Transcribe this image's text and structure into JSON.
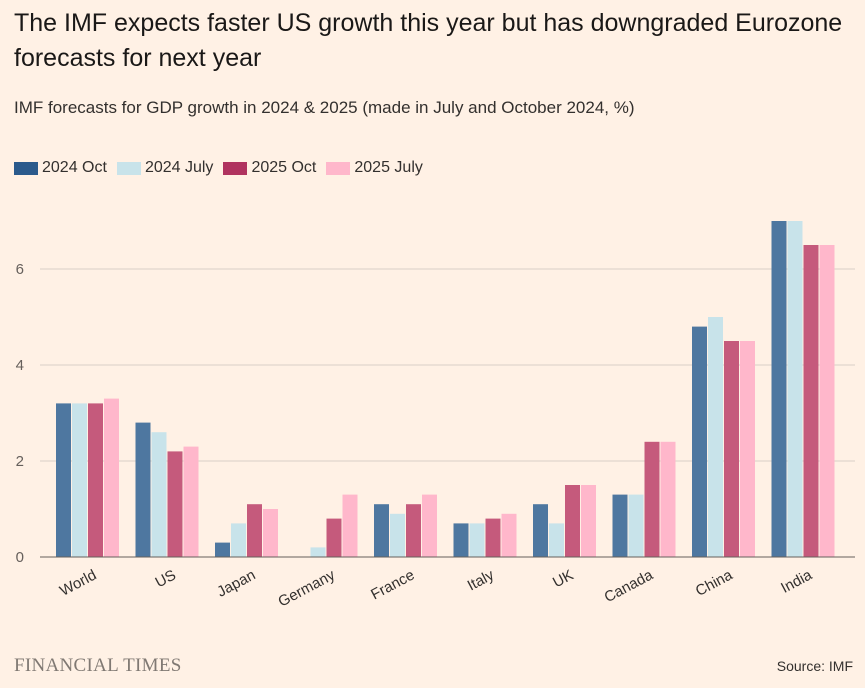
{
  "header": {
    "title": "The IMF expects faster US growth this year but has downgraded Eurozone forecasts for next year",
    "subtitle": "IMF forecasts for GDP growth in 2024 & 2025 (made in July and October 2024, %)"
  },
  "footer": {
    "brand": "FINANCIAL TIMES",
    "source": "Source: IMF"
  },
  "chart_data": {
    "type": "bar",
    "title": "The IMF expects faster US growth this year but has downgraded Eurozone forecasts for next year",
    "subtitle": "IMF forecasts for GDP growth in 2024 & 2025 (made in July and October 2024, %)",
    "categories": [
      "World",
      "US",
      "Japan",
      "Germany",
      "France",
      "Italy",
      "UK",
      "Canada",
      "China",
      "India"
    ],
    "series": [
      {
        "name": "2024 Oct",
        "color": "#4e77a0",
        "legend_color": "#2b5a8c",
        "values": [
          3.2,
          2.8,
          0.3,
          0.0,
          1.1,
          0.7,
          1.1,
          1.3,
          4.8,
          7.0
        ]
      },
      {
        "name": "2024 July",
        "color": "#c8e3ea",
        "legend_color": "#c8e3ea",
        "values": [
          3.2,
          2.6,
          0.7,
          0.2,
          0.9,
          0.7,
          0.7,
          1.3,
          5.0,
          7.0
        ]
      },
      {
        "name": "2025 Oct",
        "color": "#c55a7c",
        "legend_color": "#b0335f",
        "values": [
          3.2,
          2.2,
          1.1,
          0.8,
          1.1,
          0.8,
          1.5,
          2.4,
          4.5,
          6.5
        ]
      },
      {
        "name": "2025 July",
        "color": "#ffb7cb",
        "legend_color": "#ffb7cb",
        "values": [
          3.3,
          2.3,
          1.0,
          1.3,
          1.3,
          0.9,
          1.5,
          2.4,
          4.5,
          6.5
        ]
      }
    ],
    "yticks": [
      0,
      2,
      4,
      6
    ],
    "ylim": [
      0,
      7.5
    ],
    "xlabel": "",
    "ylabel": "",
    "grid": true,
    "legend_position": "top-left",
    "gridline_color": "#d9cfc6",
    "baseline_color": "#66605c"
  }
}
